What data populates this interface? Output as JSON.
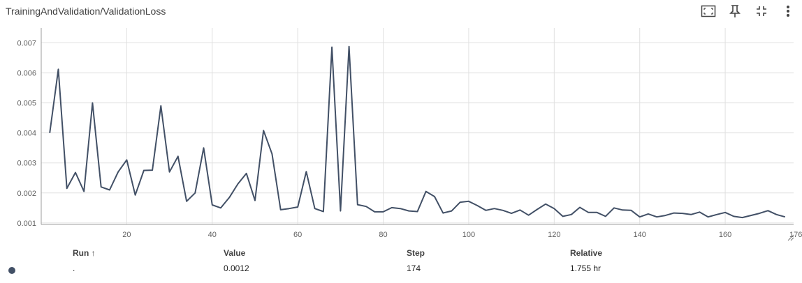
{
  "card": {
    "title": "TrainingAndValidation/ValidationLoss"
  },
  "toolbar": {
    "icons": [
      "fit-domain-icon",
      "pin-icon",
      "collapse-icon",
      "more-vert-icon"
    ]
  },
  "chart_data": {
    "type": "line",
    "title": "TrainingAndValidation/ValidationLoss",
    "xlabel": "",
    "ylabel": "",
    "xlim": [
      0,
      176
    ],
    "ylim": [
      0.00095,
      0.0075
    ],
    "x_ticks": [
      20,
      40,
      60,
      80,
      100,
      120,
      140,
      160
    ],
    "x_tick_end_label": "176",
    "y_ticks": [
      0.001,
      0.002,
      0.003,
      0.004,
      0.005,
      0.006,
      0.007
    ],
    "y_tick_labels": [
      "0.001",
      "0.002",
      "0.003",
      "0.004",
      "0.005",
      "0.006",
      "0.007"
    ],
    "grid": true,
    "series": [
      {
        "color": "#425066",
        "x": [
          2,
          4,
          6,
          8,
          10,
          12,
          14,
          16,
          18,
          20,
          22,
          24,
          26,
          28,
          30,
          32,
          34,
          36,
          38,
          40,
          42,
          44,
          46,
          48,
          50,
          52,
          54,
          56,
          58,
          60,
          62,
          64,
          66,
          68,
          70,
          72,
          74,
          76,
          78,
          80,
          82,
          84,
          86,
          88,
          90,
          92,
          94,
          96,
          98,
          100,
          102,
          104,
          106,
          108,
          110,
          112,
          114,
          116,
          118,
          120,
          122,
          124,
          126,
          128,
          130,
          132,
          134,
          136,
          138,
          140,
          142,
          144,
          146,
          148,
          150,
          152,
          154,
          156,
          158,
          160,
          162,
          164,
          166,
          168,
          170,
          172,
          174
        ],
        "y": [
          0.004,
          0.00612,
          0.00215,
          0.00268,
          0.00205,
          0.005,
          0.0022,
          0.0021,
          0.0027,
          0.0031,
          0.00193,
          0.00275,
          0.00276,
          0.0049,
          0.0027,
          0.00322,
          0.00172,
          0.002,
          0.0035,
          0.0016,
          0.0015,
          0.00185,
          0.0023,
          0.00265,
          0.00175,
          0.00408,
          0.0033,
          0.00144,
          0.00148,
          0.00153,
          0.00271,
          0.00148,
          0.00138,
          0.00686,
          0.0014,
          0.00688,
          0.00161,
          0.00155,
          0.00137,
          0.00137,
          0.00151,
          0.00148,
          0.0014,
          0.00138,
          0.00205,
          0.00188,
          0.00133,
          0.0014,
          0.00169,
          0.00172,
          0.00158,
          0.00142,
          0.00148,
          0.00142,
          0.00132,
          0.00143,
          0.00126,
          0.00145,
          0.00163,
          0.00148,
          0.00122,
          0.00128,
          0.00152,
          0.00135,
          0.00135,
          0.00122,
          0.0015,
          0.00143,
          0.00142,
          0.0012,
          0.0013,
          0.0012,
          0.00125,
          0.00133,
          0.00132,
          0.00128,
          0.00136,
          0.0012,
          0.00128,
          0.00135,
          0.00122,
          0.00118,
          0.00125,
          0.00132,
          0.00141,
          0.00128,
          0.0012
        ]
      }
    ]
  },
  "table": {
    "headers": {
      "run": "Run ↑",
      "value": "Value",
      "step": "Step",
      "relative": "Relative"
    },
    "rows": [
      {
        "color": "#425066",
        "name": ".",
        "value": "0.0012",
        "step": "174",
        "relative": "1.755 hr"
      }
    ]
  }
}
